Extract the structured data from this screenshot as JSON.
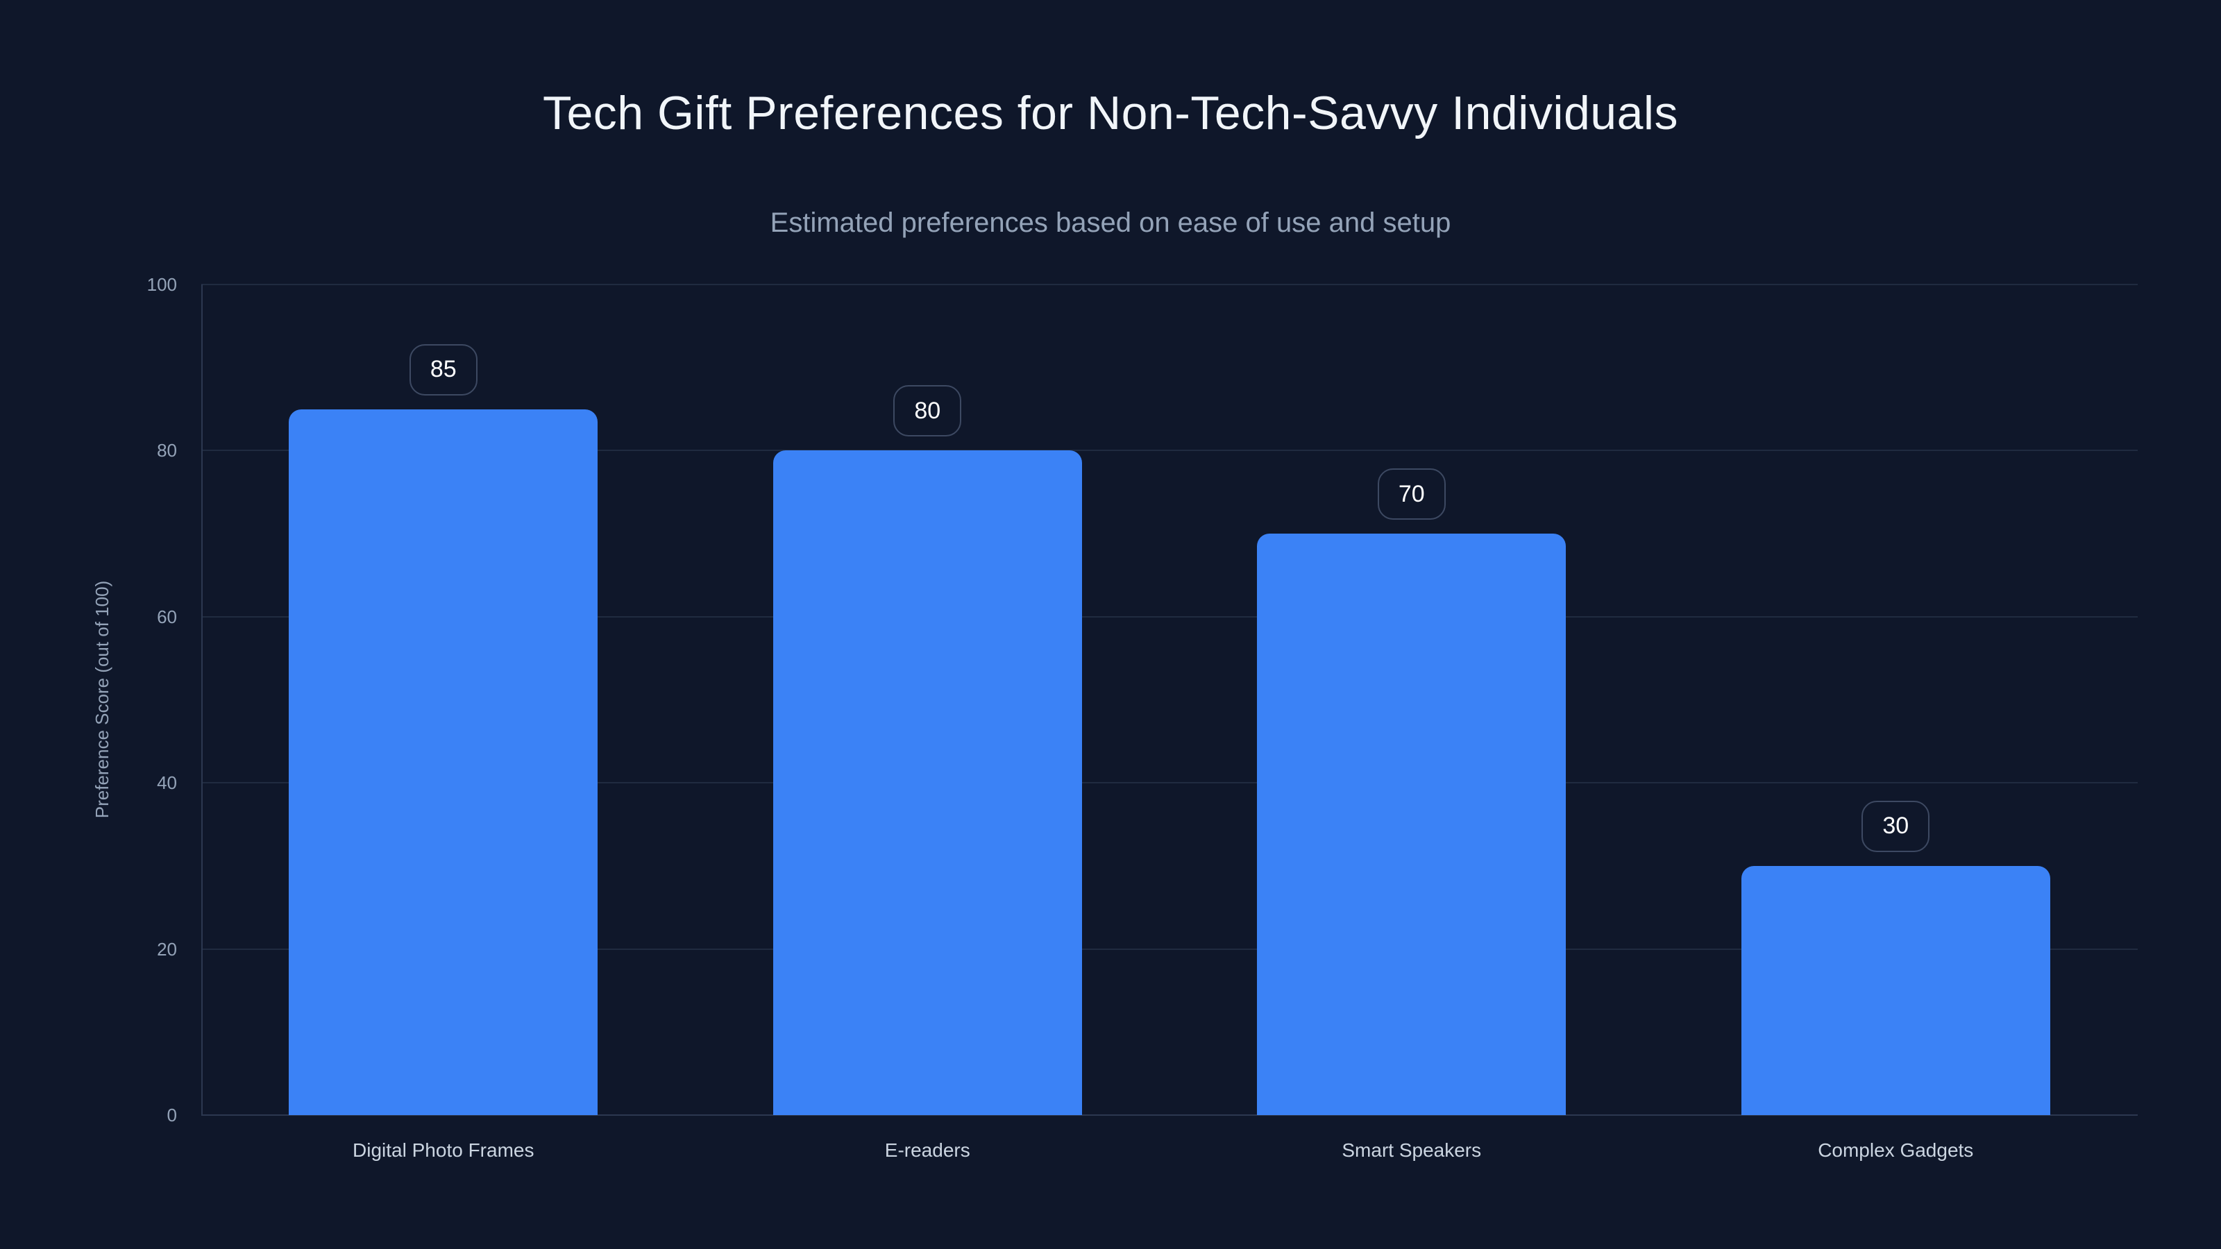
{
  "page": {
    "title": "Tech Gift Preferences for Non-Tech-Savvy Individuals",
    "subtitle": "Estimated preferences based on ease of use and setup"
  },
  "chart_data": {
    "type": "bar",
    "title": "Tech Gift Preferences for Non-Tech-Savvy Individuals",
    "subtitle": "Estimated preferences based on ease of use and setup",
    "categories": [
      "Digital Photo Frames",
      "E-readers",
      "Smart Speakers",
      "Complex Gadgets"
    ],
    "values": [
      85,
      80,
      70,
      30
    ],
    "value_labels": [
      "85",
      "80",
      "70",
      "30"
    ],
    "xlabel": "",
    "ylabel": "Preference Score (out of 100)",
    "ylim": [
      0,
      100
    ],
    "yticks": [
      0,
      20,
      40,
      60,
      80,
      100
    ],
    "grid": "horizontal",
    "legend": "none",
    "colors": {
      "background": "#0f172a",
      "bar": "#3b82f6",
      "gridline": "#202b40",
      "axis_line": "#2c3850",
      "title": "#f1f5f9",
      "subtitle": "#94a3b8",
      "tick_label": "#94a3b8",
      "category_label": "#cbd5e1",
      "badge_border": "#3d4962",
      "badge_text": "#ffffff"
    }
  }
}
